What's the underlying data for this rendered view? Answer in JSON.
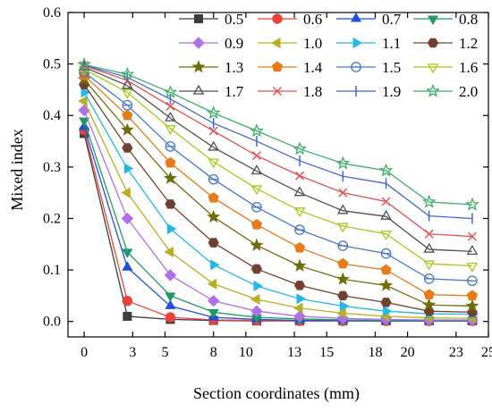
{
  "chart_data": {
    "type": "line",
    "title": "",
    "xlabel": "Section coordinates (mm)",
    "ylabel": "Mixed index",
    "xlim": [
      -1,
      25
    ],
    "ylim": [
      -0.03,
      0.6
    ],
    "xticks": [
      0,
      3,
      5,
      8,
      10,
      13,
      15,
      18,
      20,
      23,
      25
    ],
    "yticks": [
      0.0,
      0.1,
      0.2,
      0.3,
      0.4,
      0.5,
      0.6
    ],
    "xtick_labels": [
      "0",
      "3",
      "5",
      "8",
      "10",
      "13",
      "15",
      "18",
      "20",
      "23",
      "25"
    ],
    "ytick_labels": [
      "0.0",
      "0.1",
      "0.2",
      "0.3",
      "0.4",
      "0.5",
      "0.6"
    ],
    "grid": false,
    "legend_position": "top-right",
    "x": [
      0,
      2.67,
      5.33,
      8,
      10.67,
      13.33,
      16,
      18.67,
      21.33,
      24
    ],
    "series": [
      {
        "name": "0.5",
        "color": "#3d3d3d",
        "marker": "square",
        "values": [
          0.365,
          0.01,
          0.004,
          0.002,
          0.001,
          0.001,
          0.001,
          0.001,
          0.001,
          0.001
        ]
      },
      {
        "name": "0.6",
        "color": "#e8423a",
        "marker": "circle",
        "values": [
          0.372,
          0.04,
          0.008,
          0.003,
          0.002,
          0.001,
          0.001,
          0.001,
          0.001,
          0.001
        ]
      },
      {
        "name": "0.7",
        "color": "#1f4fe0",
        "marker": "triangle-up",
        "values": [
          0.378,
          0.105,
          0.03,
          0.008,
          0.004,
          0.002,
          0.002,
          0.001,
          0.001,
          0.001
        ]
      },
      {
        "name": "0.8",
        "color": "#1e9a62",
        "marker": "triangle-down",
        "values": [
          0.39,
          0.135,
          0.05,
          0.018,
          0.008,
          0.005,
          0.003,
          0.002,
          0.002,
          0.002
        ]
      },
      {
        "name": "0.9",
        "color": "#b070e8",
        "marker": "diamond",
        "values": [
          0.41,
          0.2,
          0.09,
          0.04,
          0.02,
          0.01,
          0.006,
          0.004,
          0.003,
          0.003
        ]
      },
      {
        "name": "1.0",
        "color": "#b8b022",
        "marker": "triangle-left",
        "values": [
          0.428,
          0.25,
          0.135,
          0.073,
          0.043,
          0.026,
          0.016,
          0.01,
          0.007,
          0.006
        ]
      },
      {
        "name": "1.1",
        "color": "#24b8e8",
        "marker": "triangle-right",
        "values": [
          0.445,
          0.297,
          0.18,
          0.11,
          0.069,
          0.044,
          0.03,
          0.02,
          0.015,
          0.014
        ]
      },
      {
        "name": "1.2",
        "color": "#704030",
        "marker": "hexagon",
        "values": [
          0.46,
          0.337,
          0.228,
          0.153,
          0.102,
          0.07,
          0.05,
          0.037,
          0.02,
          0.018
        ]
      },
      {
        "name": "1.3",
        "color": "#6e6e0a",
        "marker": "star",
        "values": [
          0.47,
          0.372,
          0.278,
          0.203,
          0.148,
          0.108,
          0.082,
          0.07,
          0.032,
          0.03
        ]
      },
      {
        "name": "1.4",
        "color": "#e87a18",
        "marker": "pentagon",
        "values": [
          0.478,
          0.4,
          0.308,
          0.24,
          0.188,
          0.143,
          0.112,
          0.1,
          0.052,
          0.05
        ]
      },
      {
        "name": "1.5",
        "color": "#4a78c8",
        "marker": "circle-half",
        "values": [
          0.484,
          0.42,
          0.34,
          0.276,
          0.222,
          0.178,
          0.147,
          0.132,
          0.083,
          0.079
        ]
      },
      {
        "name": "1.6",
        "color": "#a8c81e",
        "marker": "triangle-down-open",
        "values": [
          0.49,
          0.445,
          0.375,
          0.31,
          0.258,
          0.215,
          0.185,
          0.17,
          0.112,
          0.108
        ]
      },
      {
        "name": "1.7",
        "color": "#505050",
        "marker": "triangle-up-open",
        "values": [
          0.494,
          0.458,
          0.395,
          0.338,
          0.292,
          0.25,
          0.215,
          0.204,
          0.14,
          0.136
        ]
      },
      {
        "name": "1.8",
        "color": "#e05050",
        "marker": "x",
        "values": [
          0.497,
          0.468,
          0.418,
          0.37,
          0.322,
          0.283,
          0.25,
          0.233,
          0.17,
          0.165
        ]
      },
      {
        "name": "1.9",
        "color": "#4466d0",
        "marker": "vline",
        "values": [
          0.498,
          0.474,
          0.432,
          0.385,
          0.35,
          0.312,
          0.282,
          0.268,
          0.205,
          0.2
        ]
      },
      {
        "name": "2.0",
        "color": "#3cae6a",
        "marker": "star-open",
        "values": [
          0.499,
          0.48,
          0.445,
          0.405,
          0.37,
          0.335,
          0.307,
          0.293,
          0.232,
          0.227
        ]
      }
    ]
  }
}
